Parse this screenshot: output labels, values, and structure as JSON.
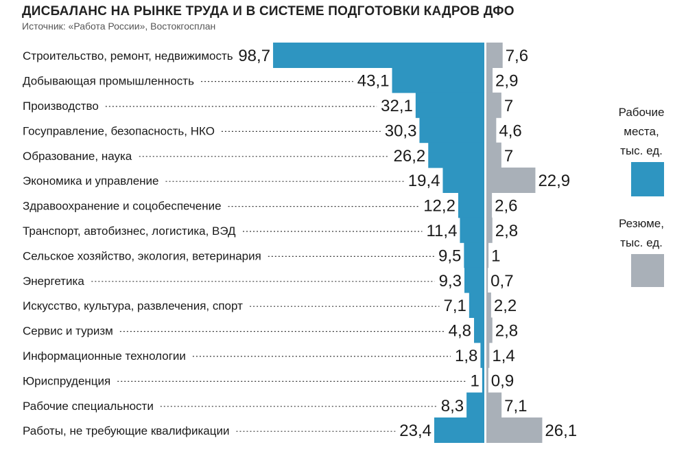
{
  "title": "ДИСБАЛАНС НА РЫНКЕ ТРУДА И В СИСТЕМЕ ПОДГОТОВКИ КАДРОВ ДФО",
  "source": "Источник: «Работа России», Востокгосплан",
  "colors": {
    "jobs": "#2e95c1",
    "resumes": "#a9b0b8",
    "dots": "#333333"
  },
  "legend": [
    {
      "label_lines": [
        "Рабочие",
        "места,",
        "тыс. ед."
      ],
      "color": "#2e95c1"
    },
    {
      "label_lines": [
        "Резюме,",
        "тыс. ед."
      ],
      "color": "#a9b0b8"
    }
  ],
  "chart_data": {
    "type": "bar",
    "orientation": "horizontal, diverging",
    "categories": [
      "Строительство, ремонт, недвижимость",
      "Добывающая промышленность",
      "Производство",
      "Госуправление, безопасность, НКО",
      "Образование, наука",
      "Экономика и управление",
      "Здравоохранение и соцобеспечение",
      "Транспорт, автобизнес, логистика, ВЭД",
      "Сельское хозяйство, экология, ветеринария",
      "Энергетика",
      "Искусство, культура, развлечения, спорт",
      "Сервис и туризм",
      "Информационные технологии",
      "Юриспруденция",
      "Рабочие специальности",
      "Работы, не требующие квалификации"
    ],
    "series": [
      {
        "name": "Рабочие места, тыс. ед.",
        "direction": "left",
        "values": [
          98.7,
          43.1,
          32.1,
          30.3,
          26.2,
          19.4,
          12.2,
          11.4,
          9.5,
          9.3,
          7.1,
          4.8,
          1.8,
          1,
          8.3,
          23.4
        ],
        "labels": [
          "98,7",
          "43,1",
          "32,1",
          "30,3",
          "26,2",
          "19,4",
          "12,2",
          "11,4",
          "9,5",
          "9,3",
          "7,1",
          "4,8",
          "1,8",
          "1",
          "8,3",
          "23,4"
        ]
      },
      {
        "name": "Резюме, тыс. ед.",
        "direction": "right",
        "values": [
          7.6,
          2.9,
          7,
          4.6,
          7,
          22.9,
          2.6,
          2.8,
          1,
          0.7,
          2.2,
          2.8,
          1.4,
          0.9,
          7.1,
          26.1
        ],
        "labels": [
          "7,6",
          "2,9",
          "7",
          "4,6",
          "7",
          "22,9",
          "2,6",
          "2,8",
          "1",
          "0,7",
          "2,2",
          "2,8",
          "1,4",
          "0,9",
          "7,1",
          "26,1"
        ]
      }
    ]
  }
}
